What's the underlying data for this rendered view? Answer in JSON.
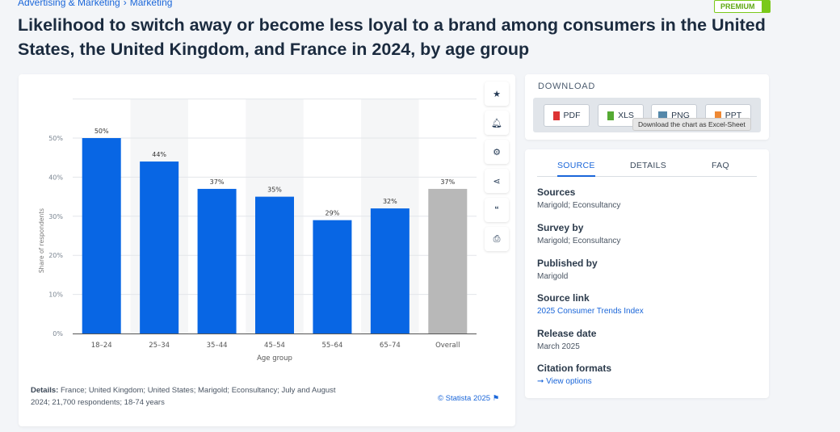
{
  "breadcrumb": [
    "Advertising & Marketing",
    "›",
    "Marketing"
  ],
  "premium_badge": "PREMIUM",
  "title": "Likelihood to switch away or become less loyal to a brand among consumers in the United States, the United Kingdom, and France in 2024, by age group",
  "toolbar": {
    "icons": [
      "star-icon",
      "bell-icon",
      "gear-icon",
      "share-icon",
      "quote-icon",
      "print-icon"
    ]
  },
  "footer": {
    "details_label": "Details:",
    "details_text": "France; United Kingdom; United States; Marigold; Econsultancy; July and August 2024; 21,700 respondents; 18-74 years",
    "credit": "© Statista 2025"
  },
  "download": {
    "heading": "DOWNLOAD",
    "buttons": [
      "PDF",
      "XLS",
      "PNG",
      "PPT"
    ],
    "tooltip": "Download the chart as Excel-Sheet"
  },
  "source_panel": {
    "tabs": [
      "SOURCE",
      "DETAILS",
      "FAQ"
    ],
    "active_tab": "SOURCE",
    "sections": [
      {
        "heading": "Sources",
        "value": "Marigold; Econsultancy"
      },
      {
        "heading": "Survey by",
        "value": "Marigold; Econsultancy"
      },
      {
        "heading": "Published by",
        "value": "Marigold"
      },
      {
        "heading": "Source link",
        "link": "2025 Consumer Trends Index"
      },
      {
        "heading": "Release date",
        "value": "March 2025"
      },
      {
        "heading": "Citation formats",
        "link": "➞ View options"
      }
    ]
  },
  "chart_data": {
    "type": "bar",
    "categories": [
      "18-24",
      "25-34",
      "35-44",
      "45-54",
      "55-64",
      "65-74",
      "Overall"
    ],
    "values": [
      50,
      44,
      37,
      35,
      29,
      32,
      37
    ],
    "data_labels": [
      "50%",
      "44%",
      "37%",
      "35%",
      "29%",
      "32%",
      "37%"
    ],
    "xlabel": "Age group",
    "ylabel": "Share of respondents",
    "ylim": [
      0,
      60
    ],
    "yticks": [
      "0%",
      "10%",
      "20%",
      "30%",
      "40%",
      "50%"
    ],
    "grid": true,
    "colors": {
      "bar": "#0866e4",
      "overall": "#b8b8b8",
      "band": "#f5f6f7"
    }
  }
}
